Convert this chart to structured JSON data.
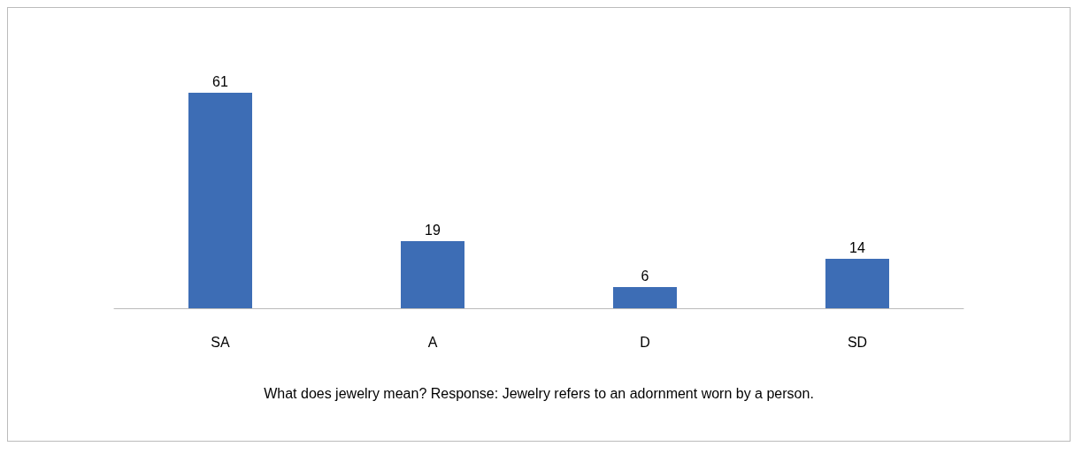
{
  "chart_data": {
    "type": "bar",
    "categories": [
      "SA",
      "A",
      "D",
      "SD"
    ],
    "values": [
      61,
      19,
      6,
      14
    ],
    "color": "#3d6db5",
    "data_labels": true,
    "grid": false,
    "xlabel": "What does jewelry mean? Response: Jewelry refers to an adornment worn by a person."
  }
}
